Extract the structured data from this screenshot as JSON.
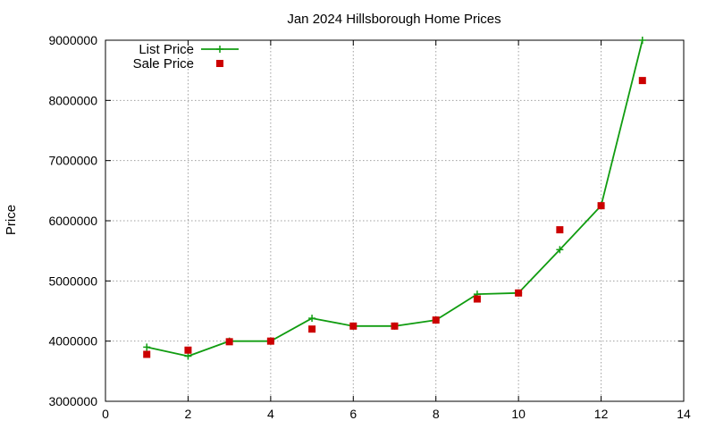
{
  "chart_data": {
    "type": "line",
    "title": "Jan 2024 Hillsborough Home Prices",
    "xlabel": "",
    "ylabel": "Price",
    "xlim": [
      0,
      14
    ],
    "ylim": [
      3000000,
      9000000
    ],
    "x_ticks": [
      0,
      2,
      4,
      6,
      8,
      10,
      12,
      14
    ],
    "y_ticks": [
      3000000,
      4000000,
      5000000,
      6000000,
      7000000,
      8000000,
      9000000
    ],
    "x_tick_labels": [
      "0",
      "2",
      "4",
      "6",
      "8",
      "10",
      "12",
      "14"
    ],
    "y_tick_labels": [
      "3000000",
      "4000000",
      "5000000",
      "6000000",
      "7000000",
      "8000000",
      "9000000"
    ],
    "grid": true,
    "legend_position": "top-left",
    "series": [
      {
        "name": "List Price",
        "style": "line-with-plus-markers",
        "color": "#109c10",
        "x": [
          1,
          2,
          3,
          4,
          5,
          6,
          7,
          8,
          9,
          10,
          11,
          12,
          13
        ],
        "y": [
          3900000,
          3750000,
          4000000,
          4000000,
          4380000,
          4250000,
          4250000,
          4350000,
          4780000,
          4800000,
          5520000,
          6250000,
          9000000
        ]
      },
      {
        "name": "Sale Price",
        "style": "square-markers",
        "color": "#cc0000",
        "x": [
          1,
          2,
          3,
          4,
          5,
          6,
          7,
          8,
          9,
          10,
          11,
          12,
          13
        ],
        "y": [
          3780000,
          3850000,
          3990000,
          4000000,
          4200000,
          4250000,
          4250000,
          4350000,
          4700000,
          4800000,
          5850000,
          6250000,
          8330000
        ]
      }
    ]
  }
}
